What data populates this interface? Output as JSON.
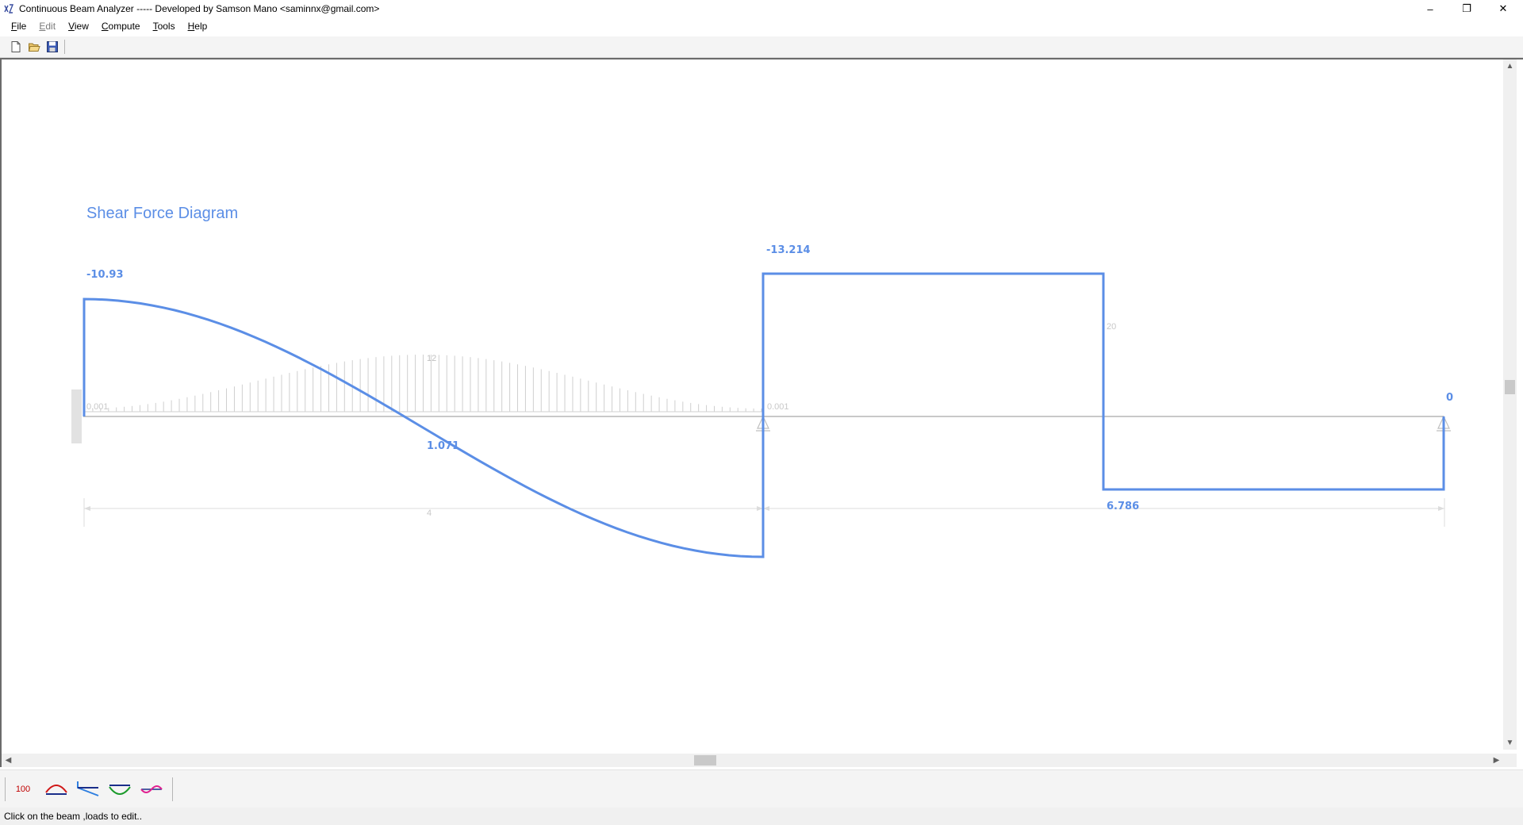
{
  "window": {
    "title": "Continuous Beam Analyzer ----- Developed by Samson Mano <saminnx@gmail.com>",
    "controls": {
      "minimize": "–",
      "restore": "❐",
      "close": "✕"
    }
  },
  "menu": {
    "items": [
      {
        "label": "File",
        "enabled": true
      },
      {
        "label": "Edit",
        "enabled": false
      },
      {
        "label": "View",
        "enabled": true
      },
      {
        "label": "Compute",
        "enabled": true
      },
      {
        "label": "Tools",
        "enabled": true
      },
      {
        "label": "Help",
        "enabled": true
      }
    ]
  },
  "toolbar": {
    "buttons": [
      {
        "icon": "new-file-icon"
      },
      {
        "icon": "open-folder-icon"
      },
      {
        "icon": "save-disk-icon"
      }
    ]
  },
  "diagram": {
    "title": "Shear Force Diagram",
    "shear_labels": {
      "start": "-10.93",
      "mid_span1": "1.071",
      "support2_top": "-13.214",
      "span2_bottom": "6.786",
      "end": "0"
    },
    "load_labels": {
      "udl_peak": "12",
      "udl_start": "0.001",
      "udl_end": "0.001",
      "point_load": "20"
    },
    "dimension_labels": {
      "span1": "4"
    },
    "colors": {
      "shear": "#5b8ee6",
      "beam": "#c8c8c8",
      "load": "#cfcfcf",
      "faint_text": "#c0c0c0"
    }
  },
  "bottom_toolbar": {
    "scale_label": "100",
    "buttons": [
      {
        "icon": "load-diagram-icon"
      },
      {
        "icon": "shear-diagram-icon"
      },
      {
        "icon": "moment-diagram-icon"
      },
      {
        "icon": "deflection-diagram-icon"
      }
    ]
  },
  "status": {
    "text": "Click on the beam ,loads to edit.."
  }
}
